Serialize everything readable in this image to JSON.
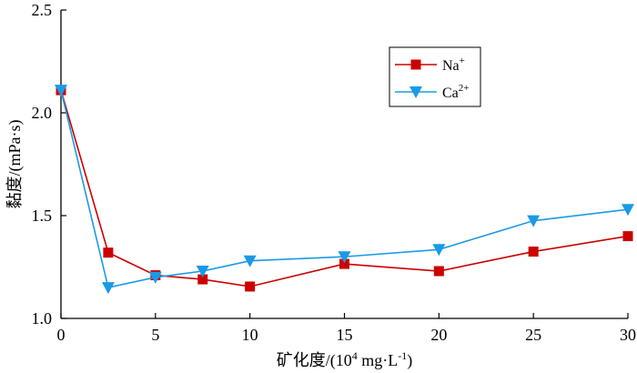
{
  "chart_data": {
    "type": "line",
    "xlabel": {
      "main": "矿化度/(10",
      "sup1": "4",
      "mid": " mg·L",
      "sup2": "-1",
      "end": ")"
    },
    "ylabel": "黏度/(mPa·s)",
    "xlim": [
      0,
      30
    ],
    "ylim": [
      1.0,
      2.5
    ],
    "xticks": [
      0,
      5,
      10,
      15,
      20,
      25,
      30
    ],
    "yticks": [
      1.0,
      1.5,
      2.0,
      2.5
    ],
    "xtick_labels": [
      "0",
      "5",
      "10",
      "15",
      "20",
      "25",
      "30"
    ],
    "ytick_labels": [
      "1.0",
      "1.5",
      "2.0",
      "2.5"
    ],
    "grid": false,
    "legend_position": "top-right",
    "series": [
      {
        "name": "Na",
        "name_sup": "+",
        "color": "#cc0000",
        "marker": "square",
        "x": [
          0,
          2.5,
          5,
          7.5,
          10,
          15,
          20,
          25,
          30
        ],
        "y": [
          2.11,
          1.32,
          1.21,
          1.19,
          1.155,
          1.265,
          1.23,
          1.325,
          1.4
        ]
      },
      {
        "name": "Ca",
        "name_sup": "2+",
        "color": "#1a9ae6",
        "marker": "triangle-down",
        "x": [
          0,
          2.5,
          5,
          7.5,
          10,
          15,
          20,
          25,
          30
        ],
        "y": [
          2.11,
          1.15,
          1.2,
          1.23,
          1.28,
          1.3,
          1.335,
          1.475,
          1.53
        ]
      }
    ]
  }
}
